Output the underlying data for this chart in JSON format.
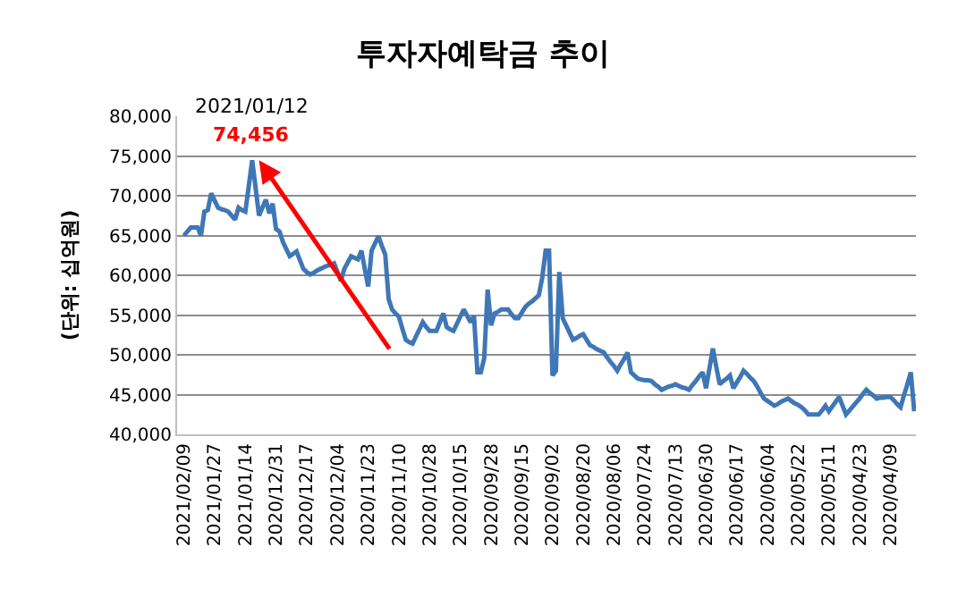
{
  "chart_data": {
    "type": "line",
    "title": "투자자예탁금 추이",
    "ylabel": "(단위: 십억원)",
    "categories": [
      "2021/02/09",
      null,
      null,
      null,
      null,
      null,
      null,
      null,
      null,
      "2021/01/27",
      null,
      null,
      null,
      null,
      null,
      null,
      null,
      null,
      "2021/01/14",
      null,
      null,
      null,
      null,
      null,
      null,
      null,
      null,
      "2020/12/31",
      null,
      null,
      null,
      null,
      null,
      null,
      null,
      null,
      "2020/12/17",
      null,
      null,
      null,
      null,
      null,
      null,
      null,
      null,
      "2020/12/04",
      null,
      null,
      null,
      null,
      null,
      null,
      null,
      null,
      "2020/11/23",
      null,
      null,
      null,
      null,
      null,
      null,
      null,
      null,
      "2020/11/10",
      null,
      null,
      null,
      null,
      null,
      null,
      null,
      null,
      "2020/10/28",
      null,
      null,
      null,
      null,
      null,
      null,
      null,
      null,
      "2020/10/15",
      null,
      null,
      null,
      null,
      null,
      null,
      null,
      null,
      "2020/09/28",
      null,
      null,
      null,
      null,
      null,
      null,
      null,
      null,
      "2020/09/15",
      null,
      null,
      null,
      null,
      null,
      null,
      null,
      null,
      "2020/09/02",
      null,
      null,
      null,
      null,
      null,
      null,
      null,
      null,
      "2020/08/20",
      null,
      null,
      null,
      null,
      null,
      null,
      null,
      null,
      "2020/08/06",
      null,
      null,
      null,
      null,
      null,
      null,
      null,
      null,
      "2020/07/24",
      null,
      null,
      null,
      null,
      null,
      null,
      null,
      null,
      "2020/07/13",
      null,
      null,
      null,
      null,
      null,
      null,
      null,
      null,
      "2020/06/30",
      null,
      null,
      null,
      null,
      null,
      null,
      null,
      null,
      "2020/06/17",
      null,
      null,
      null,
      null,
      null,
      null,
      null,
      null,
      "2020/06/04",
      null,
      null,
      null,
      null,
      null,
      null,
      null,
      null,
      "2020/05/22",
      null,
      null,
      null,
      null,
      null,
      null,
      null,
      null,
      "2020/05/11",
      null,
      null,
      null,
      null,
      null,
      null,
      null,
      null,
      "2020/04/23",
      null,
      null,
      null,
      null,
      null,
      null,
      null,
      null,
      "2020/04/09",
      null,
      null,
      null,
      null,
      null,
      null,
      null
    ],
    "series": [
      {
        "color": "#3f77b6",
        "values": [
          65000,
          65500,
          66000,
          66000,
          66000,
          65000,
          68000,
          68200,
          70300,
          69400,
          68500,
          68300,
          68200,
          68000,
          67500,
          67000,
          68500,
          68200,
          68000,
          71200,
          74456,
          71000,
          67500,
          68500,
          69500,
          67800,
          69000,
          65800,
          65500,
          64200,
          63300,
          62400,
          62700,
          63000,
          61900,
          60800,
          60400,
          60100,
          60300,
          60600,
          60800,
          61000,
          61200,
          61300,
          61500,
          60400,
          59300,
          60800,
          61600,
          62400,
          62200,
          62000,
          63100,
          60800,
          58600,
          63100,
          64000,
          64900,
          63700,
          62600,
          57000,
          55700,
          55200,
          54800,
          53300,
          51900,
          51600,
          51400,
          52300,
          53200,
          54100,
          53500,
          53000,
          53000,
          53000,
          54100,
          55200,
          53500,
          53200,
          53000,
          53900,
          54800,
          55700,
          54900,
          54100,
          54900,
          47800,
          47800,
          49600,
          58200,
          53700,
          55200,
          55400,
          55700,
          55700,
          55700,
          55100,
          54600,
          54600,
          55300,
          56000,
          56400,
          56700,
          57100,
          57500,
          59700,
          63100,
          63100,
          47400,
          48000,
          60400,
          54600,
          53700,
          52800,
          51900,
          52100,
          52400,
          52600,
          51900,
          51200,
          51000,
          50700,
          50500,
          50300,
          49700,
          49100,
          48600,
          48000,
          48800,
          49500,
          50300,
          47800,
          47400,
          47000,
          46900,
          46800,
          46800,
          46700,
          46300,
          46000,
          45600,
          45800,
          46000,
          46100,
          46300,
          46100,
          45900,
          45800,
          45600,
          46200,
          46700,
          47300,
          47800,
          45800,
          48300,
          50800,
          48500,
          46300,
          46700,
          47000,
          47400,
          45800,
          46500,
          47200,
          48000,
          47600,
          47100,
          46700,
          46000,
          45200,
          44500,
          44200,
          43900,
          43600,
          43800,
          44100,
          44300,
          44500,
          44200,
          43900,
          43700,
          43400,
          43000,
          42500,
          42500,
          42500,
          42500,
          43000,
          43600,
          42900,
          43500,
          44100,
          44700,
          43600,
          42500,
          43000,
          43500,
          44000,
          44500,
          45100,
          45600,
          45200,
          44900,
          44500,
          44600,
          44600,
          44700,
          44700,
          44300,
          43800,
          43400,
          44900,
          46300,
          47800,
          42900
        ]
      }
    ],
    "ylim": [
      40000,
      80000
    ],
    "yticks": [
      {
        "value": 40000,
        "label": "40,000"
      },
      {
        "value": 45000,
        "label": "45,000"
      },
      {
        "value": 50000,
        "label": "50,000"
      },
      {
        "value": 55000,
        "label": "55,000"
      },
      {
        "value": 60000,
        "label": "60,000"
      },
      {
        "value": 65000,
        "label": "65,000"
      },
      {
        "value": 70000,
        "label": "70,000"
      },
      {
        "value": 75000,
        "label": "75,000"
      },
      {
        "value": 80000,
        "label": "80,000"
      }
    ],
    "grid": "y",
    "marker": "none",
    "line_style": "solid",
    "annotations": [
      {
        "text": "2021/01/12",
        "y": 74456
      },
      {
        "text": "74,456",
        "y": 74456
      }
    ]
  }
}
